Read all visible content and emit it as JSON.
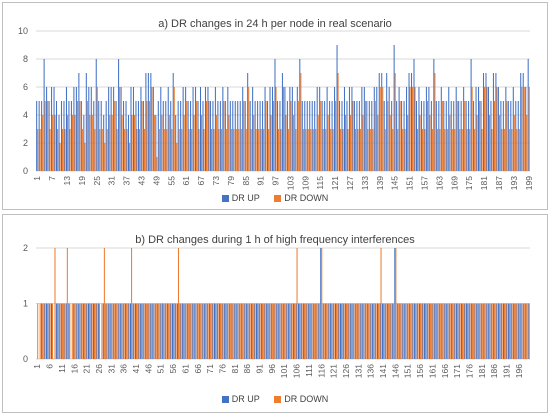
{
  "chart_data": [
    {
      "type": "bar",
      "title": "a) DR changes in 24 h per node in real scenario",
      "ylim": [
        0,
        10
      ],
      "yticks": [
        0,
        2,
        4,
        6,
        8,
        10
      ],
      "grid": true,
      "legend_position": "bottom",
      "x_tick_labels": [
        "1",
        "7",
        "13",
        "19",
        "25",
        "31",
        "37",
        "43",
        "49",
        "55",
        "61",
        "67",
        "73",
        "79",
        "85",
        "91",
        "97",
        "103",
        "109",
        "115",
        "121",
        "127",
        "133",
        "139",
        "145",
        "151",
        "157",
        "163",
        "169",
        "175",
        "181",
        "187",
        "193",
        "199"
      ],
      "series": [
        {
          "name": "DR UP",
          "color": "#4472C4",
          "values": [
            5,
            5,
            5,
            8,
            6,
            5,
            6,
            6,
            5,
            4,
            5,
            5,
            6,
            5,
            5,
            6,
            6,
            7,
            5,
            4,
            7,
            6,
            6,
            5,
            8,
            5,
            5,
            4,
            5,
            6,
            6,
            6,
            5,
            8,
            6,
            5,
            5,
            4,
            6,
            6,
            5,
            5,
            6,
            5,
            7,
            7,
            7,
            6,
            4,
            5,
            6,
            5,
            5,
            6,
            5,
            7,
            4,
            5,
            5,
            6,
            6,
            5,
            5,
            6,
            6,
            5,
            6,
            5,
            6,
            6,
            5,
            5,
            6,
            5,
            5,
            6,
            5,
            6,
            5,
            5,
            5,
            5,
            5,
            6,
            5,
            7,
            5,
            6,
            5,
            5,
            5,
            5,
            6,
            5,
            6,
            6,
            8,
            5,
            5,
            7,
            6,
            5,
            6,
            6,
            5,
            6,
            8,
            5,
            5,
            5,
            5,
            5,
            5,
            6,
            6,
            5,
            5,
            6,
            5,
            5,
            6,
            9,
            5,
            5,
            6,
            5,
            6,
            6,
            5,
            5,
            5,
            6,
            6,
            5,
            5,
            5,
            6,
            6,
            7,
            7,
            5,
            7,
            6,
            5,
            9,
            5,
            6,
            5,
            5,
            6,
            7,
            7,
            8,
            5,
            6,
            5,
            5,
            6,
            6,
            5,
            8,
            5,
            5,
            6,
            5,
            5,
            6,
            5,
            5,
            6,
            5,
            5,
            6,
            5,
            5,
            8,
            5,
            6,
            6,
            5,
            7,
            7,
            6,
            5,
            7,
            7,
            6,
            5,
            5,
            6,
            5,
            5,
            6,
            5,
            5,
            7,
            7,
            6,
            8
          ]
        },
        {
          "name": "DR DOWN",
          "color": "#ED7D31",
          "values": [
            3,
            3,
            4,
            5,
            5,
            3,
            4,
            4,
            3,
            2,
            3,
            3,
            4,
            3,
            4,
            4,
            5,
            5,
            3,
            2,
            5,
            4,
            4,
            3,
            6,
            3,
            3,
            2,
            3,
            4,
            4,
            5,
            3,
            6,
            4,
            3,
            3,
            2,
            4,
            4,
            3,
            3,
            5,
            3,
            5,
            5,
            6,
            4,
            1,
            3,
            4,
            3,
            3,
            4,
            3,
            6,
            2,
            3,
            3,
            4,
            5,
            3,
            3,
            4,
            5,
            3,
            4,
            3,
            5,
            5,
            3,
            3,
            4,
            3,
            3,
            5,
            3,
            4,
            3,
            3,
            3,
            3,
            3,
            5,
            3,
            6,
            3,
            4,
            3,
            3,
            3,
            3,
            5,
            3,
            4,
            5,
            6,
            3,
            3,
            6,
            4,
            3,
            5,
            4,
            3,
            5,
            7,
            3,
            3,
            3,
            3,
            3,
            3,
            4,
            5,
            3,
            3,
            4,
            3,
            3,
            5,
            7,
            3,
            3,
            4,
            3,
            4,
            5,
            3,
            3,
            3,
            4,
            5,
            3,
            3,
            3,
            5,
            4,
            6,
            6,
            3,
            5,
            4,
            3,
            7,
            3,
            5,
            3,
            3,
            4,
            6,
            6,
            6,
            3,
            4,
            3,
            3,
            5,
            4,
            3,
            7,
            3,
            3,
            5,
            3,
            3,
            4,
            3,
            3,
            5,
            3,
            3,
            5,
            3,
            3,
            6,
            3,
            4,
            5,
            3,
            6,
            6,
            4,
            3,
            5,
            6,
            4,
            3,
            3,
            5,
            3,
            3,
            4,
            3,
            3,
            6,
            6,
            4,
            6
          ]
        }
      ]
    },
    {
      "type": "bar",
      "title": "b) DR changes during 1 h of high frequency interferences",
      "ylim": [
        0,
        2
      ],
      "yticks": [
        0,
        1,
        2
      ],
      "grid": true,
      "legend_position": "bottom",
      "x_tick_labels": [
        "1",
        "6",
        "11",
        "16",
        "21",
        "26",
        "31",
        "36",
        "41",
        "46",
        "51",
        "56",
        "61",
        "66",
        "71",
        "76",
        "81",
        "86",
        "91",
        "96",
        "101",
        "106",
        "111",
        "116",
        "121",
        "126",
        "131",
        "136",
        "141",
        "146",
        "151",
        "156",
        "161",
        "166",
        "171",
        "176",
        "181",
        "186",
        "191",
        "196"
      ],
      "series": [
        {
          "name": "DR UP",
          "color": "#4472C4",
          "values": [
            0,
            0,
            1,
            1,
            1,
            1,
            1,
            0,
            1,
            1,
            1,
            1,
            1,
            1,
            0,
            1,
            1,
            1,
            1,
            1,
            1,
            1,
            1,
            1,
            1,
            1,
            0,
            1,
            1,
            1,
            1,
            1,
            1,
            1,
            1,
            1,
            1,
            1,
            1,
            1,
            1,
            1,
            1,
            1,
            1,
            1,
            1,
            1,
            1,
            1,
            1,
            1,
            1,
            1,
            1,
            1,
            1,
            1,
            1,
            1,
            1,
            1,
            1,
            1,
            1,
            1,
            1,
            1,
            1,
            1,
            1,
            1,
            1,
            1,
            1,
            1,
            1,
            1,
            1,
            1,
            1,
            1,
            1,
            1,
            1,
            1,
            1,
            1,
            1,
            1,
            1,
            1,
            1,
            1,
            1,
            1,
            1,
            1,
            1,
            1,
            1,
            1,
            1,
            1,
            1,
            1,
            1,
            1,
            1,
            1,
            1,
            1,
            1,
            1,
            1,
            2,
            1,
            1,
            1,
            1,
            1,
            1,
            1,
            1,
            1,
            1,
            1,
            1,
            1,
            1,
            1,
            1,
            1,
            1,
            1,
            1,
            1,
            1,
            1,
            1,
            1,
            1,
            1,
            1,
            1,
            2,
            1,
            1,
            1,
            1,
            1,
            1,
            1,
            1,
            1,
            1,
            1,
            1,
            1,
            1,
            1,
            1,
            1,
            1,
            1,
            1,
            1,
            1,
            1,
            1,
            1,
            1,
            1,
            1,
            1,
            1,
            1,
            1,
            1,
            1,
            1,
            1,
            1,
            1,
            1,
            1,
            1,
            1,
            1,
            1,
            1,
            1,
            1,
            1,
            1,
            1,
            1,
            1,
            1,
            1
          ]
        },
        {
          "name": "DR DOWN",
          "color": "#ED7D31",
          "values": [
            1,
            1,
            1,
            1,
            1,
            1,
            1,
            2,
            1,
            1,
            1,
            1,
            2,
            1,
            1,
            1,
            1,
            1,
            1,
            1,
            1,
            1,
            1,
            1,
            1,
            1,
            1,
            2,
            1,
            1,
            1,
            1,
            1,
            1,
            1,
            1,
            1,
            1,
            2,
            1,
            1,
            1,
            1,
            1,
            1,
            1,
            1,
            1,
            1,
            1,
            1,
            1,
            1,
            1,
            1,
            1,
            1,
            2,
            1,
            1,
            1,
            1,
            1,
            1,
            1,
            1,
            1,
            1,
            1,
            1,
            1,
            1,
            1,
            1,
            1,
            1,
            1,
            1,
            1,
            1,
            1,
            1,
            1,
            1,
            1,
            1,
            1,
            1,
            1,
            1,
            1,
            1,
            1,
            1,
            1,
            1,
            1,
            1,
            1,
            1,
            1,
            1,
            1,
            1,
            1,
            2,
            1,
            1,
            1,
            1,
            1,
            1,
            1,
            1,
            1,
            2,
            1,
            1,
            1,
            1,
            1,
            1,
            1,
            1,
            1,
            1,
            1,
            1,
            1,
            1,
            1,
            1,
            1,
            1,
            1,
            1,
            1,
            1,
            1,
            2,
            1,
            1,
            1,
            1,
            1,
            2,
            1,
            1,
            1,
            1,
            1,
            1,
            1,
            1,
            1,
            1,
            1,
            1,
            1,
            1,
            1,
            1,
            1,
            1,
            1,
            1,
            1,
            1,
            1,
            1,
            1,
            1,
            1,
            1,
            1,
            1,
            1,
            1,
            1,
            1,
            1,
            1,
            1,
            1,
            1,
            1,
            1,
            1,
            1,
            1,
            1,
            1,
            1,
            1,
            1,
            1,
            1,
            1,
            1,
            1
          ]
        }
      ]
    }
  ]
}
